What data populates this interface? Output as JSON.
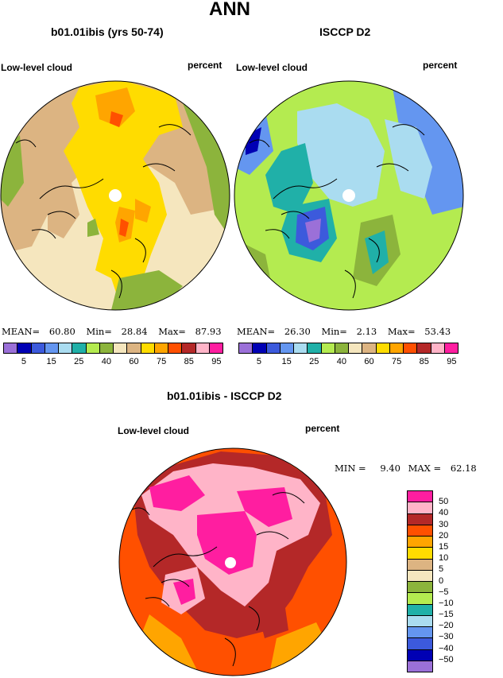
{
  "page": {
    "title": "ANN",
    "units": "percent",
    "variable": "Low-level cloud"
  },
  "maps": [
    {
      "id": "model",
      "case": "b01.01ibis (yrs 50-74)",
      "variable": "Low-level cloud",
      "units": "percent",
      "stats": {
        "mean_label": "MEAN=",
        "mean": "60.80",
        "min_label": "Min=",
        "min": "28.84",
        "max_label": "Max=",
        "max": "87.93"
      }
    },
    {
      "id": "obs",
      "case": "ISCCP D2",
      "variable": "Low-level cloud",
      "units": "percent",
      "stats": {
        "mean_label": "MEAN=",
        "mean": "26.30",
        "min_label": "Min=",
        "min": "2.13",
        "max_label": "Max=",
        "max": "53.43"
      }
    }
  ],
  "colorbar_top": {
    "colors": [
      "#9b70d8",
      "#0000b4",
      "#3c5adc",
      "#6496f0",
      "#aadcf0",
      "#20b0a8",
      "#b4eb50",
      "#8cb43c",
      "#f5e6be",
      "#dcb482",
      "#ffdc00",
      "#ffa500",
      "#ff5000",
      "#b42828",
      "#ffb4c8",
      "#ff1ea0"
    ],
    "tick_labels": [
      "5",
      "15",
      "25",
      "40",
      "60",
      "75",
      "85",
      "95"
    ]
  },
  "difference": {
    "title": "b01.01ibis - ISCCP D2",
    "variable": "Low-level cloud",
    "units": "percent",
    "min_label": "MIN =",
    "min": "9.40",
    "max_label": "MAX =",
    "max": "62.18",
    "colorbar": {
      "colors": [
        "#9b70d8",
        "#0000b4",
        "#3c5adc",
        "#6496f0",
        "#aadcf0",
        "#20b0a8",
        "#b4eb50",
        "#8cb43c",
        "#f5e6be",
        "#dcb482",
        "#ffdc00",
        "#ffa500",
        "#ff5000",
        "#b42828",
        "#ffb4c8",
        "#ff1ea0"
      ],
      "tick_labels": [
        "50",
        "40",
        "30",
        "20",
        "15",
        "10",
        "5",
        "0",
        "−5",
        "−10",
        "−15",
        "−20",
        "−30",
        "−40",
        "−50"
      ]
    }
  }
}
